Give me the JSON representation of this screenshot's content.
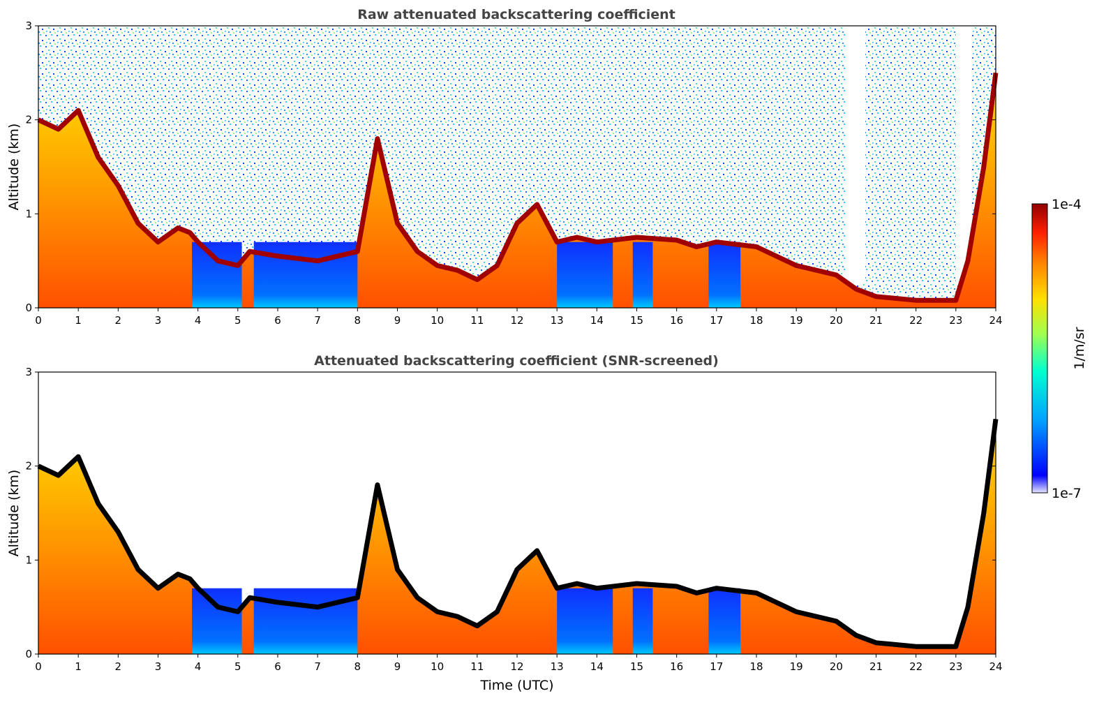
{
  "chart_data": [
    {
      "type": "heatmap",
      "title": "Raw attenuated backscattering coefficient",
      "xlabel": "",
      "ylabel": "Altitude (km)",
      "xlim": [
        0,
        24
      ],
      "ylim": [
        0,
        3
      ],
      "x_ticks": [
        "0",
        "1",
        "2",
        "3",
        "4",
        "5",
        "6",
        "7",
        "8",
        "9",
        "10",
        "11",
        "12",
        "13",
        "14",
        "15",
        "16",
        "17",
        "18",
        "19",
        "20",
        "21",
        "22",
        "23",
        "24"
      ],
      "y_ticks": [
        "0",
        "1",
        "2",
        "3"
      ],
      "boundary_layer_top_km": [
        [
          0,
          2.0
        ],
        [
          0.5,
          1.9
        ],
        [
          1,
          2.1
        ],
        [
          1.5,
          1.6
        ],
        [
          2,
          1.3
        ],
        [
          2.5,
          0.9
        ],
        [
          3,
          0.7
        ],
        [
          3.5,
          0.85
        ],
        [
          3.8,
          0.8
        ],
        [
          4,
          0.7
        ],
        [
          4.5,
          0.5
        ],
        [
          5,
          0.45
        ],
        [
          5.3,
          0.6
        ],
        [
          6,
          0.55
        ],
        [
          7,
          0.5
        ],
        [
          8,
          0.6
        ],
        [
          8.5,
          1.8
        ],
        [
          9,
          0.9
        ],
        [
          9.5,
          0.6
        ],
        [
          10,
          0.45
        ],
        [
          10.5,
          0.4
        ],
        [
          11,
          0.3
        ],
        [
          11.5,
          0.45
        ],
        [
          12,
          0.9
        ],
        [
          12.5,
          1.1
        ],
        [
          13,
          0.7
        ],
        [
          13.5,
          0.75
        ],
        [
          14,
          0.7
        ],
        [
          15,
          0.75
        ],
        [
          16,
          0.72
        ],
        [
          16.5,
          0.65
        ],
        [
          17,
          0.7
        ],
        [
          18,
          0.65
        ],
        [
          19,
          0.45
        ],
        [
          20,
          0.35
        ],
        [
          20.5,
          0.2
        ],
        [
          21,
          0.12
        ],
        [
          22,
          0.08
        ],
        [
          23,
          0.08
        ],
        [
          23.3,
          0.5
        ],
        [
          23.7,
          1.5
        ],
        [
          24,
          2.5
        ]
      ],
      "note": ""
    },
    {
      "type": "heatmap",
      "title": "Attenuated backscattering coefficient (SNR-screened)",
      "xlabel": "Time (UTC)",
      "ylabel": "Altitude (km)",
      "xlim": [
        0,
        24
      ],
      "ylim": [
        0,
        3
      ],
      "x_ticks": [
        "0",
        "1",
        "2",
        "3",
        "4",
        "5",
        "6",
        "7",
        "8",
        "9",
        "10",
        "11",
        "12",
        "13",
        "14",
        "15",
        "16",
        "17",
        "18",
        "19",
        "20",
        "21",
        "22",
        "23",
        "24"
      ],
      "y_ticks": [
        "0",
        "1",
        "2",
        "3"
      ]
    }
  ],
  "colorbar": {
    "label": "1/m/sr",
    "max_label": "1e-4",
    "min_label": "1e-7",
    "scale": "log",
    "colors": [
      "#e6e6ff",
      "#0000ff",
      "#00a0ff",
      "#00ffd0",
      "#a0ff50",
      "#ffe000",
      "#ff8000",
      "#ff2000",
      "#900000"
    ]
  }
}
